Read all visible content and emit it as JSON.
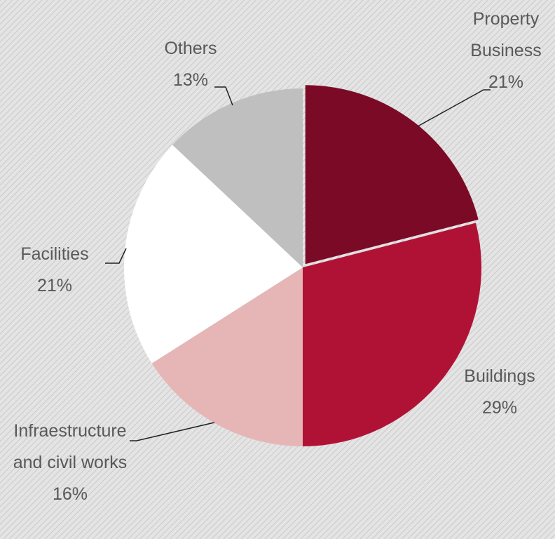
{
  "chart_data": {
    "type": "pie",
    "categories": [
      "Property Business",
      "Buildings",
      "Infraestructure and civil works",
      "Facilities",
      "Others"
    ],
    "values": [
      21,
      29,
      16,
      21,
      13
    ],
    "value_labels": [
      "21%",
      "29%",
      "16%",
      "21%",
      "13%"
    ],
    "colors": [
      "#7b0a27",
      "#b01236",
      "#e6b6b7",
      "#ffffff",
      "#bfbfbf"
    ]
  }
}
